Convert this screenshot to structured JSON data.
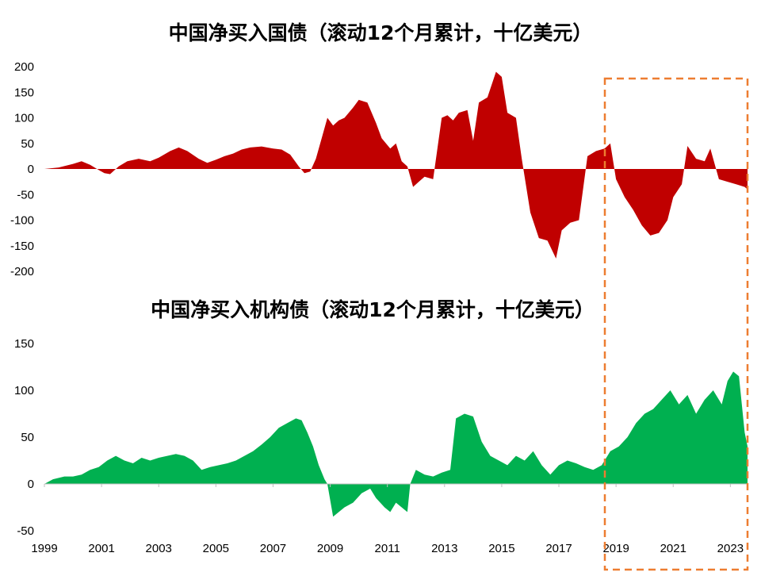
{
  "chart_data": [
    {
      "type": "area",
      "title": "中国净买入国债（滚动12个月累计，十亿美元）",
      "xlabel": "",
      "ylabel": "",
      "ylim": [
        -200,
        200
      ],
      "yticks": [
        "200",
        "150",
        "100",
        "50",
        "0",
        "-50",
        "-100",
        "-150",
        "-200"
      ],
      "grid": false,
      "series": [
        {
          "color": "#C00000",
          "x": [
            1999.0,
            1999.5,
            2000.0,
            2000.3,
            2000.6,
            2000.9,
            2001.1,
            2001.3,
            2001.6,
            2001.9,
            2002.3,
            2002.7,
            2003.0,
            2003.4,
            2003.7,
            2004.0,
            2004.4,
            2004.7,
            2005.0,
            2005.3,
            2005.6,
            2005.9,
            2006.2,
            2006.6,
            2007.0,
            2007.3,
            2007.6,
            2007.9,
            2008.1,
            2008.3,
            2008.5,
            2008.7,
            2008.9,
            2009.1,
            2009.3,
            2009.5,
            2009.8,
            2010.0,
            2010.3,
            2010.6,
            2010.8,
            2011.1,
            2011.3,
            2011.5,
            2011.7,
            2011.9,
            2012.1,
            2012.3,
            2012.6,
            2012.9,
            2013.1,
            2013.3,
            2013.5,
            2013.8,
            2014.0,
            2014.2,
            2014.5,
            2014.8,
            2015.0,
            2015.2,
            2015.5,
            2015.7,
            2016.0,
            2016.3,
            2016.6,
            2016.9,
            2017.1,
            2017.4,
            2017.7,
            2018.0,
            2018.3,
            2018.6,
            2018.8,
            2019.0,
            2019.3,
            2019.6,
            2019.9,
            2020.2,
            2020.5,
            2020.8,
            2021.0,
            2021.3,
            2021.5,
            2021.8,
            2022.1,
            2022.3,
            2022.6,
            2022.9,
            2023.2,
            2023.5,
            2023.6
          ],
          "y": [
            0,
            3,
            10,
            15,
            8,
            -2,
            -8,
            -10,
            5,
            15,
            20,
            15,
            22,
            35,
            42,
            35,
            20,
            12,
            18,
            25,
            30,
            38,
            42,
            44,
            40,
            38,
            28,
            5,
            -8,
            -5,
            20,
            60,
            100,
            85,
            95,
            100,
            120,
            135,
            130,
            90,
            60,
            40,
            50,
            15,
            5,
            -35,
            -25,
            -15,
            -20,
            100,
            105,
            95,
            110,
            115,
            55,
            130,
            140,
            190,
            180,
            110,
            100,
            20,
            -85,
            -135,
            -140,
            -175,
            -120,
            -105,
            -100,
            25,
            35,
            40,
            50,
            -20,
            -55,
            -80,
            -110,
            -130,
            -125,
            -100,
            -55,
            -30,
            45,
            20,
            15,
            40,
            -20,
            -25,
            -30,
            -35,
            -40
          ]
        }
      ]
    },
    {
      "type": "area",
      "title": "中国净买入机构债（滚动12个月累计，十亿美元）",
      "xlabel": "",
      "ylabel": "",
      "ylim": [
        -50,
        150
      ],
      "yticks": [
        "150",
        "100",
        "50",
        "0",
        "-50"
      ],
      "xticks": [
        "1999",
        "2001",
        "2003",
        "2005",
        "2007",
        "2009",
        "2011",
        "2013",
        "2015",
        "2017",
        "2019",
        "2021",
        "2023"
      ],
      "grid": false,
      "series": [
        {
          "color": "#00B050",
          "x": [
            1999.0,
            1999.3,
            1999.7,
            2000.0,
            2000.3,
            2000.6,
            2000.9,
            2001.2,
            2001.5,
            2001.8,
            2002.1,
            2002.4,
            2002.7,
            2003.0,
            2003.3,
            2003.6,
            2003.9,
            2004.2,
            2004.5,
            2004.8,
            2005.1,
            2005.4,
            2005.7,
            2006.0,
            2006.3,
            2006.6,
            2006.9,
            2007.2,
            2007.5,
            2007.8,
            2008.0,
            2008.2,
            2008.4,
            2008.6,
            2008.8,
            2008.9,
            2009.1,
            2009.3,
            2009.5,
            2009.8,
            2010.1,
            2010.4,
            2010.6,
            2010.9,
            2011.1,
            2011.3,
            2011.5,
            2011.7,
            2011.8,
            2012.0,
            2012.3,
            2012.6,
            2012.9,
            2013.2,
            2013.4,
            2013.7,
            2014.0,
            2014.3,
            2014.6,
            2014.9,
            2015.2,
            2015.5,
            2015.8,
            2016.1,
            2016.4,
            2016.7,
            2017.0,
            2017.3,
            2017.6,
            2017.9,
            2018.2,
            2018.5,
            2018.8,
            2019.1,
            2019.4,
            2019.7,
            2020.0,
            2020.3,
            2020.6,
            2020.9,
            2021.2,
            2021.5,
            2021.8,
            2022.1,
            2022.4,
            2022.7,
            2022.9,
            2023.1,
            2023.3,
            2023.5,
            2023.6
          ],
          "y": [
            0,
            5,
            8,
            8,
            10,
            15,
            18,
            25,
            30,
            25,
            22,
            28,
            25,
            28,
            30,
            32,
            30,
            25,
            15,
            18,
            20,
            22,
            25,
            30,
            35,
            42,
            50,
            60,
            65,
            70,
            68,
            55,
            40,
            20,
            5,
            0,
            -35,
            -30,
            -25,
            -20,
            -10,
            -5,
            -15,
            -25,
            -30,
            -20,
            -25,
            -30,
            0,
            15,
            10,
            8,
            12,
            15,
            70,
            75,
            72,
            45,
            30,
            25,
            20,
            30,
            25,
            35,
            20,
            10,
            20,
            25,
            22,
            18,
            15,
            20,
            35,
            40,
            50,
            65,
            75,
            80,
            90,
            100,
            85,
            95,
            75,
            90,
            100,
            85,
            110,
            120,
            115,
            55,
            40
          ]
        }
      ]
    }
  ],
  "colors": {
    "highlight_box": "#ED7D31"
  }
}
